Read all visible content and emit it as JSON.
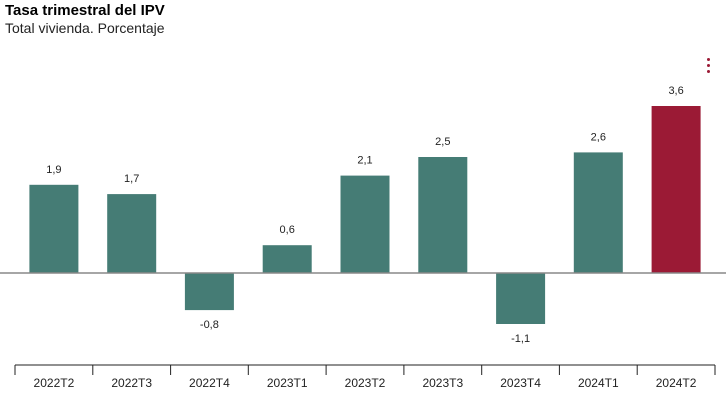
{
  "title": "Tasa trimestral del IPV",
  "subtitle": "Total vivienda. Porcentaje",
  "menu": {
    "icon": "kebab-menu-icon"
  },
  "colors": {
    "bar": "#457c75",
    "highlight": "#9b1a35",
    "zero_line": "#888888",
    "axis": "#222222",
    "menu": "#9b1a35"
  },
  "chart_data": {
    "type": "bar",
    "categories": [
      "2022T2",
      "2022T3",
      "2022T4",
      "2023T1",
      "2023T2",
      "2023T3",
      "2023T4",
      "2024T1",
      "2024T2"
    ],
    "values": [
      1.9,
      1.7,
      -0.8,
      0.6,
      2.1,
      2.5,
      -1.1,
      2.6,
      3.6
    ],
    "value_labels": [
      "1,9",
      "1,7",
      "-0,8",
      "0,6",
      "2,1",
      "2,5",
      "-1,1",
      "2,6",
      "3,6"
    ],
    "highlight_index": 8,
    "title": "Tasa trimestral del IPV",
    "subtitle": "Total vivienda. Porcentaje",
    "xlabel": "",
    "ylabel": "",
    "grid": false,
    "legend": "none"
  }
}
